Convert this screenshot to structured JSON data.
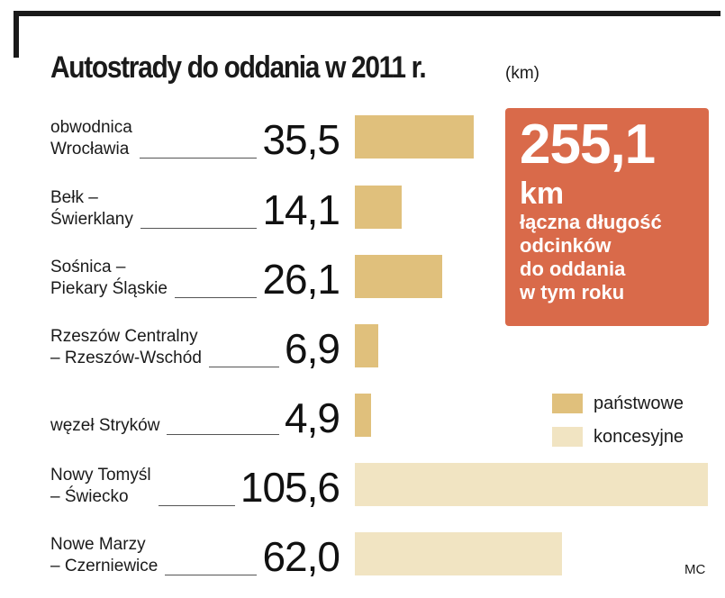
{
  "chart_data": {
    "type": "bar",
    "orientation": "horizontal",
    "title": "Autostrady do oddania w 2011 r.",
    "unit": "(km)",
    "categories": [
      [
        "obwodnica",
        "Wrocławia"
      ],
      [
        "Bełk –",
        "Świerklany"
      ],
      [
        "Sośnica –",
        "Piekary Śląskie"
      ],
      [
        "Rzeszów Centralny",
        "– Rzeszów-Wschód"
      ],
      [
        "węzeł Stryków"
      ],
      [
        "Nowy Tomyśl",
        "– Świecko"
      ],
      [
        "Nowe Marzy",
        "– Czerniewice"
      ]
    ],
    "values": [
      35.5,
      14.1,
      26.1,
      6.9,
      4.9,
      105.6,
      62.0
    ],
    "value_labels": [
      "35,5",
      "14,1",
      "26,1",
      "6,9",
      "4,9",
      "105,6",
      "62,0"
    ],
    "types": [
      "państwowe",
      "państwowe",
      "państwowe",
      "państwowe",
      "państwowe",
      "koncesyjne",
      "koncesyjne"
    ],
    "xlim": [
      0,
      105.6
    ],
    "legend": [
      {
        "label": "państwowe",
        "color": "#e0c07c"
      },
      {
        "label": "koncesyjne",
        "color": "#f1e4c2"
      }
    ],
    "legend_position": "right"
  },
  "callout": {
    "number": "255,1",
    "unit": "km",
    "lines": [
      "łączna długość",
      "odcinków",
      "do oddania",
      "w tym roku"
    ],
    "color": "#d96a4a"
  },
  "credit": "MC"
}
